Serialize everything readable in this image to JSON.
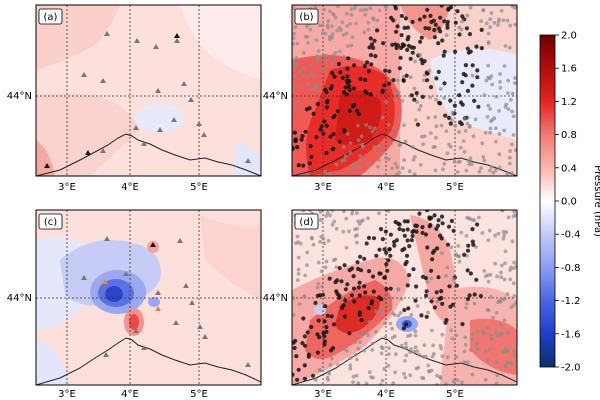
{
  "panels": [
    {
      "id": "a",
      "label": "(a)",
      "show_lat_label": true
    },
    {
      "id": "b",
      "label": "(b)",
      "show_lat_label": true
    },
    {
      "id": "c",
      "label": "(c)",
      "show_lat_label": true
    },
    {
      "id": "d",
      "label": "(d)",
      "show_lat_label": true
    }
  ],
  "lat_tick_label": "44°N",
  "lon_tick_labels": [
    "3°E",
    "4°E",
    "5°E"
  ],
  "colorbar": {
    "label": "Pressure (hPa)",
    "ticks": [
      "2.0",
      "1.6",
      "1.2",
      "0.8",
      "0.4",
      "0.0",
      "-0.4",
      "-0.8",
      "-1.2",
      "-1.6",
      "-2.0"
    ],
    "min": -2.0,
    "max": 2.0,
    "colors": [
      "#08306b",
      "#1f3fc9",
      "#4a67e6",
      "#7c8ff0",
      "#b0b9f5",
      "#dfe2fb",
      "#ffffff",
      "#fce0dd",
      "#f9b6b0",
      "#f48a84",
      "#ef5050",
      "#e62222",
      "#c51515",
      "#9e0b0b",
      "#6e0000"
    ]
  }
}
